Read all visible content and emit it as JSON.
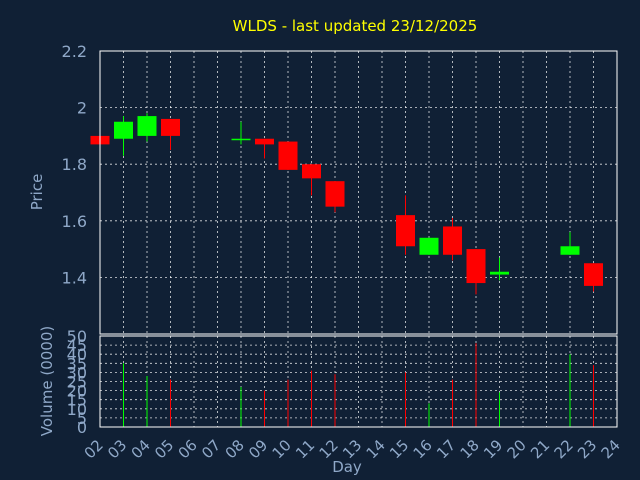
{
  "chart_data": {
    "type": "candlestick",
    "title": "WLDS - last updated 23/12/2025",
    "xlabel": "Day",
    "ylabel_price": "Price",
    "ylabel_volume": "Volume (0000)",
    "x_ticks": [
      "02",
      "03",
      "04",
      "05",
      "06",
      "07",
      "08",
      "09",
      "10",
      "11",
      "12",
      "13",
      "14",
      "15",
      "16",
      "17",
      "18",
      "19",
      "20",
      "21",
      "22",
      "23",
      "24"
    ],
    "price_ylim": [
      1.2,
      2.2
    ],
    "price_ticks": [
      "2.2",
      "2",
      "1.8",
      "1.6",
      "1.4"
    ],
    "volume_ylim": [
      0,
      50
    ],
    "volume_ticks": [
      "50",
      "45",
      "40",
      "35",
      "30",
      "25",
      "20",
      "15",
      "10",
      "5",
      "0"
    ],
    "up_color": "#00ff00",
    "down_color": "#ff0000",
    "grid": true,
    "candles": [
      {
        "day": "02",
        "open": 1.9,
        "high": 1.9,
        "low": 1.87,
        "close": 1.87,
        "volume": 0
      },
      {
        "day": "03",
        "open": 1.89,
        "high": 1.97,
        "low": 1.83,
        "close": 1.95,
        "volume": 35
      },
      {
        "day": "04",
        "open": 1.9,
        "high": 1.98,
        "low": 1.88,
        "close": 1.97,
        "volume": 28
      },
      {
        "day": "05",
        "open": 1.96,
        "high": 1.96,
        "low": 1.85,
        "close": 1.9,
        "volume": 26
      },
      {
        "day": "08",
        "open": 1.89,
        "high": 1.95,
        "low": 1.87,
        "close": 1.89,
        "volume": 22
      },
      {
        "day": "09",
        "open": 1.89,
        "high": 1.89,
        "low": 1.82,
        "close": 1.87,
        "volume": 20
      },
      {
        "day": "10",
        "open": 1.88,
        "high": 1.88,
        "low": 1.78,
        "close": 1.78,
        "volume": 26
      },
      {
        "day": "11",
        "open": 1.8,
        "high": 1.8,
        "low": 1.69,
        "close": 1.75,
        "volume": 31
      },
      {
        "day": "12",
        "open": 1.74,
        "high": 1.74,
        "low": 1.63,
        "close": 1.65,
        "volume": 29
      },
      {
        "day": "15",
        "open": 1.62,
        "high": 1.69,
        "low": 1.48,
        "close": 1.51,
        "volume": 30
      },
      {
        "day": "16",
        "open": 1.48,
        "high": 1.54,
        "low": 1.48,
        "close": 1.54,
        "volume": 13
      },
      {
        "day": "17",
        "open": 1.58,
        "high": 1.61,
        "low": 1.46,
        "close": 1.48,
        "volume": 26
      },
      {
        "day": "18",
        "open": 1.5,
        "high": 1.5,
        "low": 1.34,
        "close": 1.38,
        "volume": 46
      },
      {
        "day": "19",
        "open": 1.41,
        "high": 1.47,
        "low": 1.39,
        "close": 1.42,
        "volume": 19
      },
      {
        "day": "22",
        "open": 1.48,
        "high": 1.56,
        "low": 1.48,
        "close": 1.51,
        "volume": 40
      },
      {
        "day": "23",
        "open": 1.45,
        "high": 1.45,
        "low": 1.35,
        "close": 1.37,
        "volume": 34
      }
    ]
  }
}
